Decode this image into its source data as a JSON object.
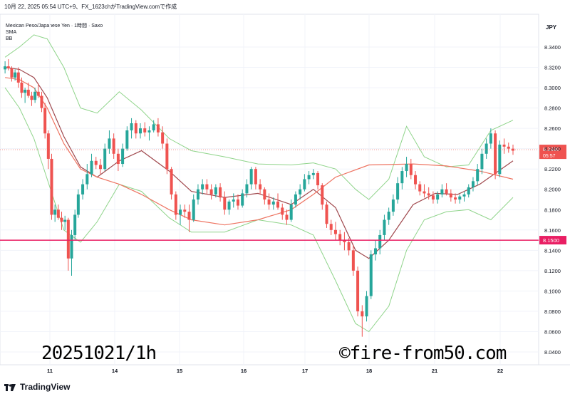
{
  "header": {
    "text": "10月 22, 2025 05:54 UTC+9、FX_1623chがTradingView.comで作成"
  },
  "legend": {
    "symbol": "Mexican Peso/Japanese Yen · 1時間 · Saxo",
    "ind1": "SMA",
    "ind2": "BB"
  },
  "price_axis": {
    "currency": "JPY",
    "last_price": "8.2390",
    "countdown": "05:57",
    "line_label": "8.1500"
  },
  "watermark": "20251021/1h",
  "copyright": "©fire-from50.com",
  "footer": {
    "brand": "TradingView"
  },
  "colors": {
    "up": "#26a69a",
    "down": "#ef5350",
    "bb": "#8fd48a",
    "sma": "#ee7462",
    "basis": "#a0494e",
    "hline": "#e91e63"
  },
  "chart_data": {
    "type": "candlestick",
    "title": "Mexican Peso/Japanese Yen · 1時間 · Saxo",
    "ylabel": "JPY",
    "ylim": [
      8.04,
      8.36
    ],
    "y_ticks": [
      "8.3400",
      "8.3200",
      "8.3000",
      "8.2800",
      "8.2600",
      "8.2400",
      "8.2200",
      "8.2000",
      "8.1800",
      "8.1600",
      "8.1400",
      "8.1200",
      "8.1000",
      "8.0800",
      "8.0600",
      "8.0400"
    ],
    "x_ticks": [
      "11",
      "14",
      "15",
      "16",
      "17",
      "18",
      "21",
      "22"
    ],
    "x_tick_positions": [
      2.0,
      5.0,
      6.0,
      7.0,
      8.0,
      9.0,
      10.0,
      11.0
    ],
    "x_range": [
      1.3,
      11.4
    ],
    "horizontal_line": 8.15,
    "last_price": 8.239,
    "candles": [
      [
        1.32,
        8.318,
        8.326,
        8.314,
        8.321
      ],
      [
        1.35,
        8.321,
        8.328,
        8.317,
        8.319
      ],
      [
        1.38,
        8.319,
        8.321,
        8.306,
        8.31
      ],
      [
        1.41,
        8.31,
        8.318,
        8.307,
        8.315
      ],
      [
        1.44,
        8.315,
        8.32,
        8.3,
        8.305
      ],
      [
        1.47,
        8.305,
        8.31,
        8.29,
        8.295
      ],
      [
        1.5,
        8.295,
        8.3,
        8.285,
        8.298
      ],
      [
        1.53,
        8.298,
        8.305,
        8.29,
        8.292
      ],
      [
        1.56,
        8.292,
        8.296,
        8.282,
        8.288
      ],
      [
        1.59,
        8.288,
        8.3,
        8.285,
        8.296
      ],
      [
        1.62,
        8.296,
        8.304,
        8.29,
        8.292
      ],
      [
        1.65,
        8.292,
        8.296,
        8.276,
        8.28
      ],
      [
        1.68,
        8.28,
        8.285,
        8.25,
        8.255
      ],
      [
        1.71,
        8.255,
        8.258,
        8.22,
        8.23
      ],
      [
        1.74,
        8.23,
        8.235,
        8.17,
        8.175
      ],
      [
        1.77,
        8.175,
        8.185,
        8.168,
        8.18
      ],
      [
        1.8,
        8.18,
        8.185,
        8.17,
        8.172
      ],
      [
        1.83,
        8.172,
        8.178,
        8.16,
        8.168
      ],
      [
        1.86,
        8.168,
        8.174,
        8.16,
        8.17
      ],
      [
        1.89,
        8.17,
        8.172,
        8.12,
        8.132
      ],
      [
        1.92,
        8.132,
        8.16,
        8.115,
        8.155
      ],
      [
        1.95,
        8.155,
        8.18,
        8.15,
        8.175
      ],
      [
        1.98,
        8.175,
        8.2,
        8.172,
        8.195
      ],
      [
        2.02,
        8.195,
        8.21,
        8.19,
        8.205
      ],
      [
        2.06,
        8.205,
        8.225,
        8.2,
        8.215
      ],
      [
        2.1,
        8.215,
        8.235,
        8.212,
        8.228
      ],
      [
        2.14,
        8.228,
        8.232,
        8.22,
        8.224
      ],
      [
        2.18,
        8.224,
        8.23,
        8.215,
        8.22
      ],
      [
        2.22,
        8.22,
        8.245,
        8.218,
        8.24
      ],
      [
        2.26,
        8.24,
        8.258,
        8.235,
        8.25
      ],
      [
        2.3,
        8.25,
        8.255,
        8.23,
        8.235
      ],
      [
        2.34,
        8.235,
        8.24,
        8.218,
        8.225
      ],
      [
        2.38,
        8.225,
        8.245,
        8.222,
        8.24
      ],
      [
        2.42,
        8.24,
        8.262,
        8.238,
        8.258
      ],
      [
        2.46,
        8.258,
        8.27,
        8.25,
        8.265
      ],
      [
        2.5,
        8.265,
        8.268,
        8.25,
        8.255
      ],
      [
        2.54,
        8.255,
        8.265,
        8.25,
        8.26
      ],
      [
        2.58,
        8.26,
        8.266,
        8.252,
        8.256
      ],
      [
        2.62,
        8.256,
        8.262,
        8.248,
        8.258
      ],
      [
        2.66,
        8.258,
        8.268,
        8.256,
        8.264
      ],
      [
        2.7,
        8.264,
        8.27,
        8.252,
        8.256
      ],
      [
        2.74,
        8.256,
        8.262,
        8.24,
        8.245
      ],
      [
        2.78,
        8.245,
        8.25,
        8.215,
        8.22
      ],
      [
        2.82,
        8.22,
        8.222,
        8.19,
        8.195
      ],
      [
        2.86,
        8.195,
        8.198,
        8.17,
        8.175
      ],
      [
        2.9,
        8.175,
        8.185,
        8.165,
        8.18
      ],
      [
        2.94,
        8.18,
        8.185,
        8.172,
        8.178
      ],
      [
        2.98,
        8.178,
        8.185,
        8.158,
        8.17
      ],
      [
        3.02,
        8.17,
        8.195,
        8.168,
        8.19
      ],
      [
        3.06,
        8.19,
        8.205,
        8.185,
        8.2
      ],
      [
        3.1,
        8.2,
        8.21,
        8.195,
        8.205
      ],
      [
        3.14,
        8.205,
        8.21,
        8.195,
        8.2
      ],
      [
        3.18,
        8.2,
        8.205,
        8.19,
        8.195
      ],
      [
        3.22,
        8.195,
        8.205,
        8.192,
        8.202
      ],
      [
        3.26,
        8.202,
        8.206,
        8.188,
        8.192
      ],
      [
        3.3,
        8.192,
        8.198,
        8.175,
        8.18
      ],
      [
        3.34,
        8.18,
        8.19,
        8.175,
        8.188
      ],
      [
        3.38,
        8.188,
        8.196,
        8.182,
        8.19
      ],
      [
        3.42,
        8.19,
        8.195,
        8.18,
        8.184
      ],
      [
        3.46,
        8.184,
        8.2,
        8.182,
        8.196
      ],
      [
        3.5,
        8.196,
        8.21,
        8.192,
        8.205
      ],
      [
        3.54,
        8.205,
        8.222,
        8.2,
        8.22
      ],
      [
        3.58,
        8.22,
        8.222,
        8.2,
        8.205
      ],
      [
        3.62,
        8.205,
        8.21,
        8.195,
        8.2
      ],
      [
        3.66,
        8.2,
        8.202,
        8.185,
        8.19
      ],
      [
        3.7,
        8.19,
        8.196,
        8.18,
        8.185
      ],
      [
        3.74,
        8.185,
        8.192,
        8.18,
        8.188
      ],
      [
        3.78,
        8.188,
        8.196,
        8.18,
        8.182
      ],
      [
        3.82,
        8.182,
        8.186,
        8.17,
        8.175
      ],
      [
        3.86,
        8.175,
        8.18,
        8.165,
        8.17
      ],
      [
        3.9,
        8.17,
        8.19,
        8.168,
        8.185
      ],
      [
        3.94,
        8.185,
        8.198,
        8.182,
        8.195
      ],
      [
        3.98,
        8.195,
        8.205,
        8.19,
        8.2
      ],
      [
        4.02,
        8.2,
        8.215,
        8.198,
        8.21
      ],
      [
        4.06,
        8.21,
        8.218,
        8.205,
        8.214
      ],
      [
        4.1,
        8.214,
        8.22,
        8.21,
        8.216
      ],
      [
        4.14,
        8.216,
        8.218,
        8.2,
        8.204
      ],
      [
        4.18,
        8.204,
        8.206,
        8.18,
        8.185
      ],
      [
        4.22,
        8.185,
        8.188,
        8.162,
        8.166
      ],
      [
        4.26,
        8.166,
        8.17,
        8.155,
        8.16
      ],
      [
        4.3,
        8.16,
        8.168,
        8.15,
        8.156
      ],
      [
        4.34,
        8.156,
        8.16,
        8.145,
        8.15
      ],
      [
        4.38,
        8.15,
        8.158,
        8.14,
        8.148
      ],
      [
        4.42,
        8.148,
        8.152,
        8.135,
        8.14
      ],
      [
        4.46,
        8.14,
        8.145,
        8.115,
        8.12
      ],
      [
        4.5,
        8.12,
        8.124,
        8.075,
        8.08
      ],
      [
        4.54,
        8.08,
        8.086,
        8.055,
        8.075
      ],
      [
        4.58,
        8.075,
        8.1,
        8.07,
        8.095
      ],
      [
        4.62,
        8.095,
        8.14,
        8.092,
        8.136
      ],
      [
        4.66,
        8.136,
        8.15,
        8.13,
        8.142
      ],
      [
        4.7,
        8.142,
        8.16,
        8.136,
        8.155
      ],
      [
        4.74,
        8.155,
        8.175,
        8.15,
        8.17
      ],
      [
        4.78,
        8.17,
        8.182,
        8.165,
        8.178
      ],
      [
        4.82,
        8.178,
        8.195,
        8.174,
        8.19
      ],
      [
        4.86,
        8.19,
        8.212,
        8.186,
        8.206
      ],
      [
        4.9,
        8.206,
        8.222,
        8.2,
        8.218
      ],
      [
        4.94,
        8.218,
        8.232,
        8.212,
        8.225
      ],
      [
        4.98,
        8.225,
        8.23,
        8.21,
        8.214
      ],
      [
        5.02,
        8.214,
        8.218,
        8.2,
        8.205
      ],
      [
        5.06,
        8.205,
        8.208,
        8.194,
        8.198
      ],
      [
        5.1,
        8.198,
        8.205,
        8.192,
        8.196
      ],
      [
        5.14,
        8.196,
        8.202,
        8.19,
        8.194
      ],
      [
        5.18,
        8.194,
        8.198,
        8.186,
        8.19
      ],
      [
        5.22,
        8.19,
        8.198,
        8.186,
        8.195
      ],
      [
        5.26,
        8.195,
        8.205,
        8.192,
        8.2
      ],
      [
        5.3,
        8.2,
        8.206,
        8.194,
        8.196
      ],
      [
        5.34,
        8.196,
        8.2,
        8.188,
        8.192
      ],
      [
        5.38,
        8.192,
        8.196,
        8.186,
        8.19
      ],
      [
        5.42,
        8.19,
        8.195,
        8.186,
        8.193
      ],
      [
        5.46,
        8.193,
        8.198,
        8.188,
        8.195
      ],
      [
        5.5,
        8.195,
        8.205,
        8.192,
        8.202
      ],
      [
        5.54,
        8.202,
        8.212,
        8.198,
        8.208
      ],
      [
        5.58,
        8.208,
        8.225,
        8.204,
        8.22
      ],
      [
        5.62,
        8.22,
        8.24,
        8.215,
        8.235
      ],
      [
        5.66,
        8.235,
        8.25,
        8.23,
        8.245
      ],
      [
        5.7,
        8.245,
        8.26,
        8.24,
        8.255
      ],
      [
        5.74,
        8.255,
        8.258,
        8.21,
        8.215
      ],
      [
        5.78,
        8.215,
        8.248,
        8.212,
        8.244
      ],
      [
        5.82,
        8.244,
        8.25,
        8.235,
        8.242
      ],
      [
        5.86,
        8.242,
        8.246,
        8.236,
        8.24
      ],
      [
        5.9,
        8.24,
        8.244,
        8.234,
        8.238
      ]
    ],
    "sma": [
      [
        1.32,
        8.31
      ],
      [
        1.45,
        8.308
      ],
      [
        1.58,
        8.3
      ],
      [
        1.7,
        8.28
      ],
      [
        1.85,
        8.245
      ],
      [
        2.0,
        8.22
      ],
      [
        2.15,
        8.212
      ],
      [
        2.35,
        8.205
      ],
      [
        2.55,
        8.195
      ],
      [
        2.8,
        8.18
      ],
      [
        3.0,
        8.17
      ],
      [
        3.3,
        8.165
      ],
      [
        3.6,
        8.17
      ],
      [
        3.9,
        8.18
      ],
      [
        4.1,
        8.195
      ],
      [
        4.3,
        8.212
      ],
      [
        4.6,
        8.224
      ],
      [
        5.0,
        8.225
      ],
      [
        5.3,
        8.223
      ],
      [
        5.6,
        8.218
      ],
      [
        5.9,
        8.21
      ]
    ],
    "bb_basis": [
      [
        1.32,
        8.32
      ],
      [
        1.45,
        8.318
      ],
      [
        1.58,
        8.31
      ],
      [
        1.7,
        8.29
      ],
      [
        1.85,
        8.252
      ],
      [
        2.0,
        8.222
      ],
      [
        2.15,
        8.212
      ],
      [
        2.35,
        8.228
      ],
      [
        2.55,
        8.238
      ],
      [
        2.8,
        8.218
      ],
      [
        3.0,
        8.198
      ],
      [
        3.3,
        8.192
      ],
      [
        3.6,
        8.196
      ],
      [
        3.9,
        8.185
      ],
      [
        4.1,
        8.2
      ],
      [
        4.3,
        8.182
      ],
      [
        4.48,
        8.14
      ],
      [
        4.6,
        8.132
      ],
      [
        4.78,
        8.15
      ],
      [
        5.0,
        8.185
      ],
      [
        5.2,
        8.196
      ],
      [
        5.4,
        8.195
      ],
      [
        5.6,
        8.205
      ],
      [
        5.9,
        8.228
      ]
    ],
    "bb_upper": [
      [
        1.32,
        8.33
      ],
      [
        1.45,
        8.34
      ],
      [
        1.58,
        8.352
      ],
      [
        1.7,
        8.348
      ],
      [
        1.85,
        8.32
      ],
      [
        2.0,
        8.28
      ],
      [
        2.15,
        8.275
      ],
      [
        2.35,
        8.296
      ],
      [
        2.55,
        8.278
      ],
      [
        2.8,
        8.25
      ],
      [
        3.0,
        8.238
      ],
      [
        3.3,
        8.232
      ],
      [
        3.6,
        8.225
      ],
      [
        3.9,
        8.224
      ],
      [
        4.1,
        8.226
      ],
      [
        4.3,
        8.22
      ],
      [
        4.48,
        8.2
      ],
      [
        4.6,
        8.19
      ],
      [
        4.78,
        8.21
      ],
      [
        4.94,
        8.262
      ],
      [
        5.1,
        8.232
      ],
      [
        5.3,
        8.222
      ],
      [
        5.5,
        8.224
      ],
      [
        5.7,
        8.258
      ],
      [
        5.9,
        8.268
      ]
    ],
    "bb_lower": [
      [
        1.32,
        8.3
      ],
      [
        1.45,
        8.28
      ],
      [
        1.58,
        8.25
      ],
      [
        1.7,
        8.21
      ],
      [
        1.85,
        8.16
      ],
      [
        2.0,
        8.148
      ],
      [
        2.15,
        8.168
      ],
      [
        2.35,
        8.205
      ],
      [
        2.55,
        8.198
      ],
      [
        2.8,
        8.172
      ],
      [
        3.0,
        8.158
      ],
      [
        3.3,
        8.158
      ],
      [
        3.6,
        8.17
      ],
      [
        3.9,
        8.165
      ],
      [
        4.1,
        8.155
      ],
      [
        4.3,
        8.11
      ],
      [
        4.48,
        8.068
      ],
      [
        4.6,
        8.06
      ],
      [
        4.78,
        8.085
      ],
      [
        4.94,
        8.14
      ],
      [
        5.1,
        8.17
      ],
      [
        5.3,
        8.178
      ],
      [
        5.5,
        8.18
      ],
      [
        5.7,
        8.17
      ],
      [
        5.9,
        8.192
      ]
    ]
  }
}
